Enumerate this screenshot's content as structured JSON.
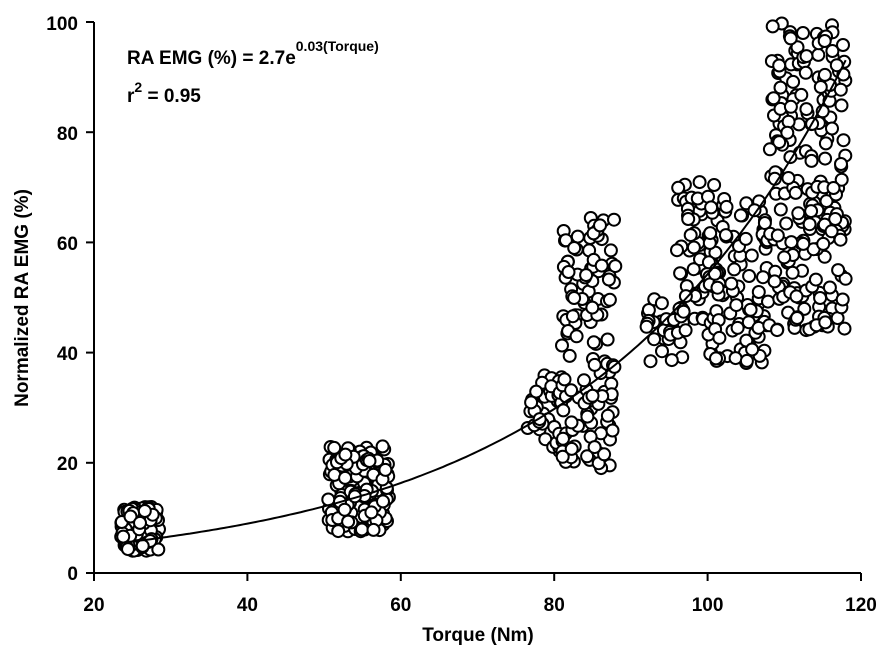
{
  "chart_data": {
    "type": "scatter",
    "xlabel": "Torque (Nm)",
    "ylabel": "Normalized RA EMG (%)",
    "xlim": [
      20,
      120
    ],
    "ylim": [
      0,
      100
    ],
    "xticks": [
      "20",
      "40",
      "60",
      "80",
      "100",
      "120"
    ],
    "yticks": [
      "0",
      "20",
      "40",
      "60",
      "80",
      "100"
    ],
    "grid": false,
    "equation": {
      "prefix": "RA EMG (%) = 2.7e",
      "exponent": "0.03(Torque)"
    },
    "r_squared": {
      "prefix": "r",
      "sup": "2",
      "suffix": " = 0.95"
    },
    "fit": {
      "model": "exponential",
      "a": 2.7,
      "b": 0.03,
      "x_range": [
        25,
        118
      ]
    },
    "clusters": [
      {
        "x": [
          23.5,
          28.5
        ],
        "y": [
          4,
          12
        ],
        "n": 140
      },
      {
        "x": [
          50.5,
          58.5
        ],
        "y": [
          7.5,
          23
        ],
        "n": 150
      },
      {
        "x": [
          76.5,
          81
        ],
        "y": [
          22,
          36
        ],
        "n": 40
      },
      {
        "x": [
          81,
          88
        ],
        "y": [
          19,
          66
        ],
        "n": 130
      },
      {
        "x": [
          92,
          97
        ],
        "y": [
          38,
          50
        ],
        "n": 30
      },
      {
        "x": [
          96,
          101
        ],
        "y": [
          44,
          72
        ],
        "n": 60
      },
      {
        "x": [
          100,
          108
        ],
        "y": [
          38,
          68
        ],
        "n": 110
      },
      {
        "x": [
          108,
          118
        ],
        "y": [
          44,
          100
        ],
        "n": 230
      }
    ]
  }
}
